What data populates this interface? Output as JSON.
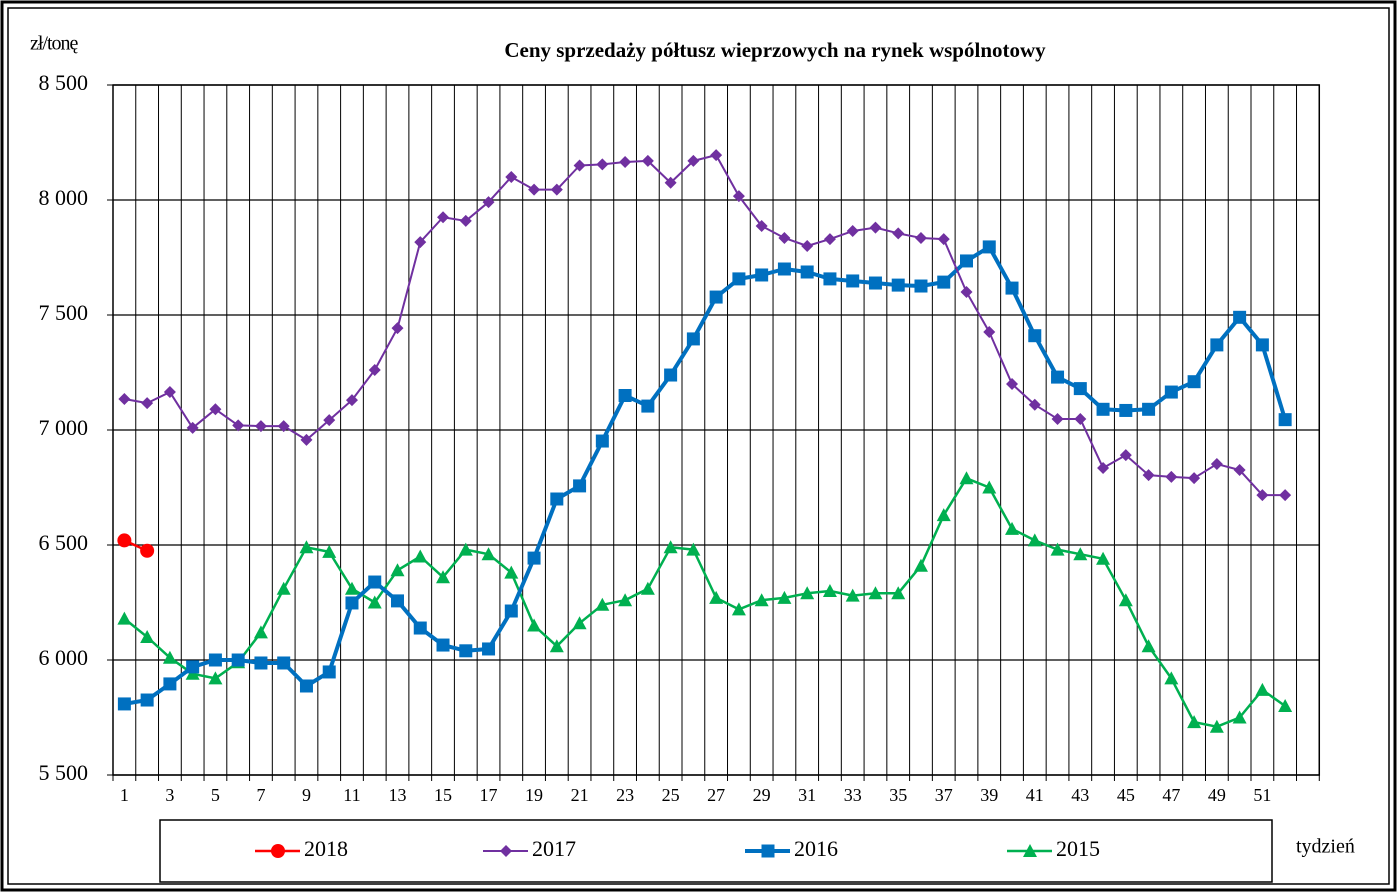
{
  "chart_data": {
    "type": "line",
    "title": "Ceny sprzedaży półtusz wieprzowych  na rynek wspólnotowy",
    "y_label": "zł/tonę",
    "x_label": "tydzień",
    "categories": [
      "1",
      null,
      "3",
      null,
      "5",
      null,
      "7",
      null,
      "9",
      null,
      "11",
      null,
      "13",
      null,
      "15",
      null,
      "17",
      null,
      "19",
      null,
      "21",
      null,
      "23",
      null,
      "25",
      null,
      "27",
      null,
      "29",
      null,
      "31",
      null,
      "33",
      null,
      "35",
      null,
      "37",
      null,
      "39",
      null,
      "41",
      null,
      "43",
      null,
      "45",
      null,
      "47",
      null,
      "49",
      null,
      "51",
      null,
      null
    ],
    "ylim": [
      5500,
      8500
    ],
    "yticks": [
      {
        "value": 5500,
        "label": "5 500"
      },
      {
        "value": 6000,
        "label": "6 000"
      },
      {
        "value": 6500,
        "label": "6 500"
      },
      {
        "value": 7000,
        "label": "7 000"
      },
      {
        "value": 7500,
        "label": "7 500"
      },
      {
        "value": 8000,
        "label": "8 000"
      },
      {
        "value": 8500,
        "label": "8 500"
      }
    ],
    "grid": true,
    "legend": "bottom",
    "series": [
      {
        "name": "2018",
        "color": "#ff0000",
        "marker": "circle",
        "values": [
          6520,
          6475,
          null,
          null,
          null,
          null,
          null,
          null,
          null,
          null,
          null,
          null,
          null,
          null,
          null,
          null,
          null,
          null,
          null,
          null,
          null,
          null,
          null,
          null,
          null,
          null,
          null,
          null,
          null,
          null,
          null,
          null,
          null,
          null,
          null,
          null,
          null,
          null,
          null,
          null,
          null,
          null,
          null,
          null,
          null,
          null,
          null,
          null,
          null,
          null,
          null,
          null,
          null
        ]
      },
      {
        "name": "2017",
        "color": "#7030a0",
        "marker": "diamond",
        "values": [
          7135,
          7117,
          7165,
          7009,
          7090,
          7020,
          7017,
          7017,
          6957,
          7043,
          7130,
          7261,
          7443,
          7817,
          7925,
          7909,
          7991,
          8100,
          8045,
          8045,
          8150,
          8155,
          8165,
          8170,
          8075,
          8170,
          8195,
          8017,
          7887,
          7835,
          7800,
          7830,
          7865,
          7880,
          7855,
          7835,
          7830,
          7600,
          7426,
          7200,
          7110,
          7048,
          7048,
          6835,
          6891,
          6804,
          6796,
          6791,
          6852,
          6826,
          6717,
          6717,
          null
        ]
      },
      {
        "name": "2016",
        "color": "#0070c0",
        "marker": "square",
        "values": [
          5809,
          5826,
          5896,
          5970,
          6000,
          6000,
          5987,
          5987,
          5887,
          5948,
          6248,
          6339,
          6257,
          6139,
          6065,
          6040,
          6048,
          6213,
          6443,
          6700,
          6757,
          6952,
          7150,
          7104,
          7239,
          7396,
          7578,
          7657,
          7674,
          7700,
          7687,
          7657,
          7648,
          7639,
          7630,
          7626,
          7643,
          7735,
          7796,
          7617,
          7410,
          7230,
          7180,
          7090,
          7085,
          7090,
          7165,
          7210,
          7370,
          7490,
          7370,
          7045,
          null
        ]
      },
      {
        "name": "2015",
        "color": "#00b050",
        "marker": "triangle",
        "values": [
          6180,
          6100,
          6010,
          5940,
          5920,
          5990,
          6120,
          6310,
          6490,
          6470,
          6310,
          6250,
          6390,
          6450,
          6360,
          6480,
          6460,
          6380,
          6150,
          6060,
          6160,
          6240,
          6260,
          6310,
          6490,
          6480,
          6270,
          6220,
          6260,
          6270,
          6290,
          6300,
          6280,
          6290,
          6290,
          6410,
          6630,
          6790,
          6750,
          6570,
          6520,
          6480,
          6460,
          6440,
          6260,
          6060,
          5920,
          5730,
          5710,
          5750,
          5870,
          5800,
          null
        ]
      }
    ]
  }
}
